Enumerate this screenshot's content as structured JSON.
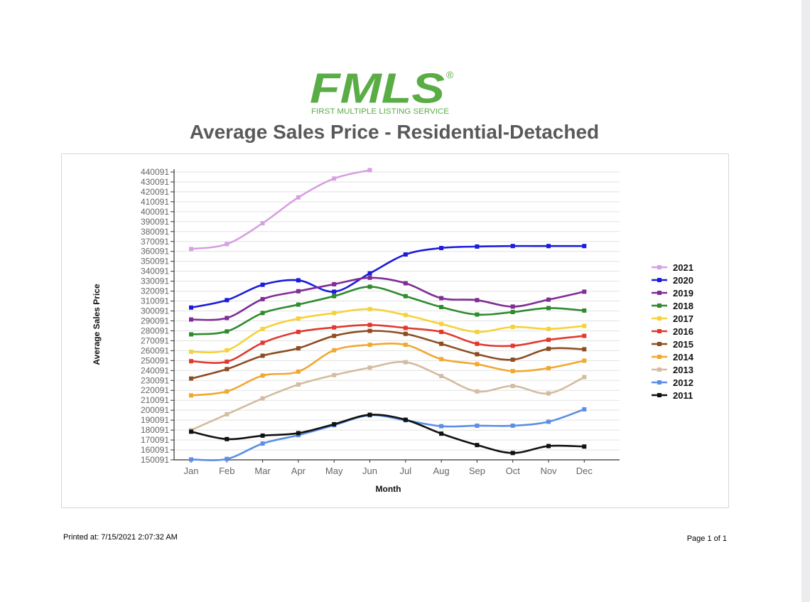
{
  "logo": {
    "text": "FMLS",
    "registered": "®",
    "tagline": "FIRST MULTIPLE LISTING SERVICE",
    "color": "#5aac45"
  },
  "footer": {
    "printed_at": "Printed at:  7/15/2021 2:07:32 AM",
    "page": "Page 1 of 1"
  },
  "chart_data": {
    "type": "line",
    "title": "Average Sales Price - Residential-Detached",
    "xlabel": "Month",
    "ylabel": "Average Sales Price",
    "categories": [
      "Jan",
      "Feb",
      "Mar",
      "Apr",
      "May",
      "Jun",
      "Jul",
      "Aug",
      "Sep",
      "Oct",
      "Nov",
      "Dec"
    ],
    "yticks": [
      150091,
      160091,
      170091,
      180091,
      190091,
      200091,
      210091,
      220091,
      230091,
      240091,
      250091,
      260091,
      270091,
      280091,
      290091,
      300091,
      310091,
      320091,
      330091,
      340091,
      350091,
      360091,
      370091,
      380091,
      390091,
      400091,
      410091,
      420091,
      430091,
      440091
    ],
    "ylim": [
      150091,
      440091
    ],
    "grid": true,
    "legend_position": "right",
    "series": [
      {
        "name": "2021",
        "color": "#d8a0e2",
        "values": [
          362500,
          367500,
          388500,
          414500,
          433500,
          442000,
          null,
          null,
          null,
          null,
          null,
          null
        ]
      },
      {
        "name": "2020",
        "color": "#1c1cdc",
        "values": [
          303500,
          311000,
          326500,
          331000,
          319500,
          338000,
          357000,
          363500,
          365000,
          365500,
          365500,
          365500
        ]
      },
      {
        "name": "2019",
        "color": "#7e2e94",
        "values": [
          291500,
          293000,
          312000,
          320000,
          327000,
          333500,
          328000,
          313000,
          311000,
          304500,
          311500,
          319500
        ]
      },
      {
        "name": "2018",
        "color": "#2e8b2e",
        "values": [
          276500,
          279500,
          298000,
          306500,
          315000,
          324500,
          315000,
          304000,
          296500,
          299000,
          303000,
          300500
        ]
      },
      {
        "name": "2017",
        "color": "#f5d23a",
        "values": [
          259000,
          260500,
          282000,
          292500,
          298000,
          302000,
          296000,
          287000,
          279000,
          284000,
          282000,
          285000
        ]
      },
      {
        "name": "2016",
        "color": "#e03a2f",
        "values": [
          249500,
          249000,
          268000,
          279000,
          283500,
          286000,
          283000,
          279000,
          267000,
          265000,
          271000,
          275000
        ]
      },
      {
        "name": "2015",
        "color": "#8c4d22",
        "values": [
          232000,
          241500,
          255000,
          262500,
          275000,
          280000,
          277000,
          267000,
          256500,
          251000,
          262000,
          261500
        ]
      },
      {
        "name": "2014",
        "color": "#f0a830",
        "values": [
          215000,
          219000,
          235000,
          239000,
          260500,
          266000,
          266000,
          251500,
          246500,
          239500,
          242500,
          250000
        ]
      },
      {
        "name": "2013",
        "color": "#d3bca0",
        "values": [
          180000,
          196000,
          212000,
          226000,
          235500,
          243000,
          248500,
          234500,
          219000,
          224500,
          217000,
          233500
        ]
      },
      {
        "name": "2012",
        "color": "#5b8ee6",
        "values": [
          150500,
          151000,
          166500,
          175000,
          185000,
          195000,
          190000,
          184000,
          184500,
          184500,
          188500,
          201000
        ]
      },
      {
        "name": "2011",
        "color": "#111111",
        "values": [
          178500,
          171000,
          174500,
          177000,
          186000,
          195500,
          190500,
          176500,
          165000,
          157000,
          164000,
          163500
        ]
      }
    ]
  }
}
